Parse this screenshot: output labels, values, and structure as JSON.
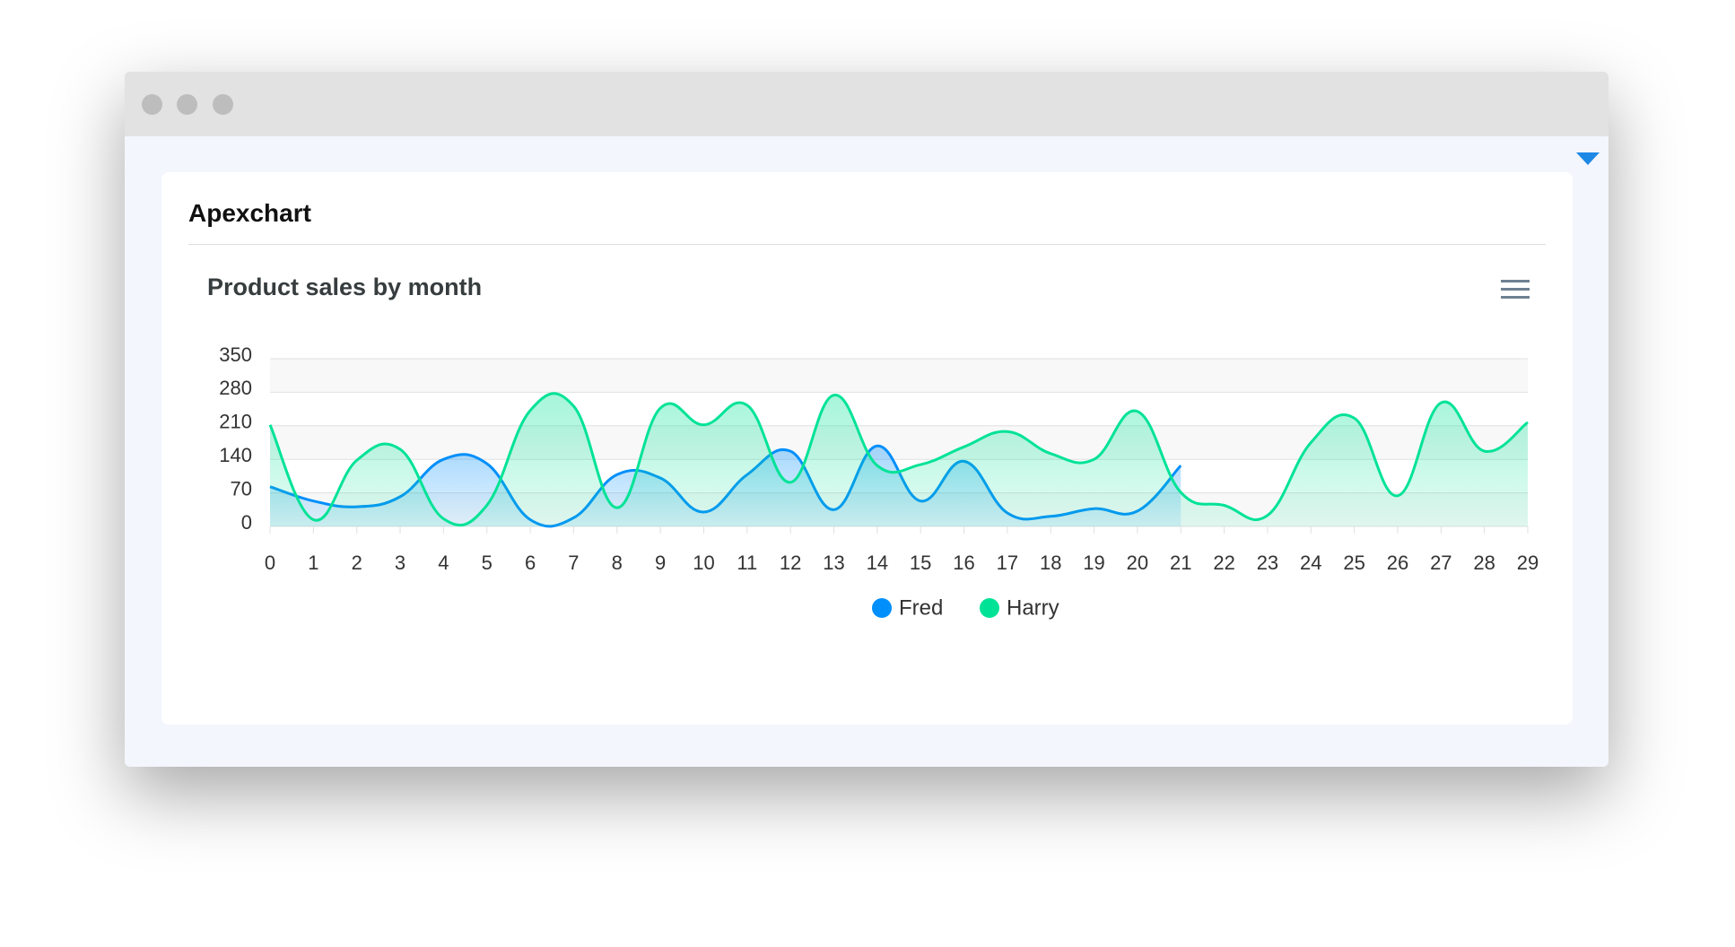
{
  "header": {
    "title": "Apexchart"
  },
  "chart_data": {
    "type": "area",
    "title": "Product sales by month",
    "x": [
      0,
      1,
      2,
      3,
      4,
      5,
      6,
      7,
      8,
      9,
      10,
      11,
      12,
      13,
      14,
      15,
      16,
      17,
      18,
      19,
      20,
      21,
      22,
      23,
      24,
      25,
      26,
      27,
      28,
      29
    ],
    "xlim": [
      0,
      29
    ],
    "xticks": [
      0,
      1,
      2,
      3,
      4,
      5,
      6,
      7,
      8,
      9,
      10,
      11,
      12,
      13,
      14,
      15,
      16,
      17,
      18,
      19,
      20,
      21,
      22,
      23,
      24,
      25,
      26,
      27,
      28,
      29
    ],
    "ylim": [
      0,
      350
    ],
    "yticks": [
      0,
      70,
      140,
      210,
      280,
      350
    ],
    "grid": true,
    "series": [
      {
        "name": "Fred",
        "color": "#008ffb",
        "values": [
          83,
          53,
          41,
          62,
          140,
          131,
          14,
          18,
          108,
          101,
          30,
          108,
          157,
          35,
          168,
          53,
          136,
          28,
          21,
          37,
          32,
          127,
          null,
          null,
          null,
          null,
          null,
          null,
          null,
          null
        ]
      },
      {
        "name": "Harry",
        "color": "#00e396",
        "values": [
          212,
          14,
          138,
          161,
          16,
          44,
          242,
          251,
          39,
          247,
          212,
          253,
          92,
          274,
          127,
          129,
          166,
          198,
          152,
          140,
          240,
          71,
          44,
          23,
          175,
          226,
          64,
          258,
          157,
          217
        ]
      }
    ],
    "legend": "bottom"
  }
}
